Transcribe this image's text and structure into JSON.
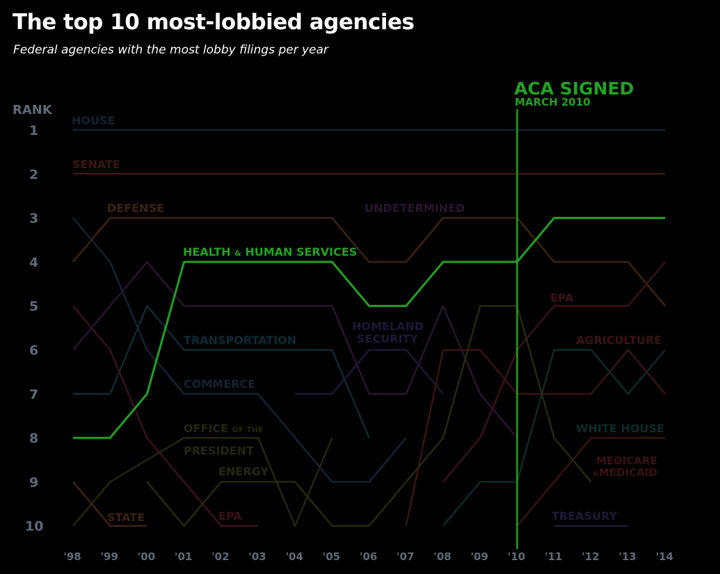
{
  "title": "The top 10 most-lobbied agencies",
  "subtitle": "Federal agencies with the most lobby filings per year",
  "chart_data": {
    "type": "line",
    "ylabel": "RANK",
    "x_tick_labels": [
      "'98",
      "'99",
      "'00",
      "'01",
      "'02",
      "'03",
      "'04",
      "'05",
      "'06",
      "'07",
      "'08",
      "'09",
      "'10",
      "'11",
      "'12",
      "'13",
      "'14"
    ],
    "y_tick_labels": [
      "1",
      "2",
      "3",
      "4",
      "5",
      "6",
      "7",
      "8",
      "9",
      "10"
    ],
    "ylim": [
      1,
      10
    ],
    "y_inverted": true,
    "annotation": {
      "title": "ACA SIGNED",
      "subtitle": "MARCH 2010",
      "x": "'10",
      "color": "#22a322"
    },
    "series": [
      {
        "name": "HOUSE",
        "color": "#142233",
        "values": [
          1,
          1,
          1,
          1,
          1,
          1,
          1,
          1,
          1,
          1,
          1,
          1,
          1,
          1,
          1,
          1,
          1
        ]
      },
      {
        "name": "SENATE",
        "color": "#3a1712",
        "values": [
          2,
          2,
          2,
          2,
          2,
          2,
          2,
          2,
          2,
          2,
          2,
          2,
          2,
          2,
          2,
          2,
          2
        ]
      },
      {
        "name": "DEFENSE",
        "color": "#3d2312",
        "values": [
          4,
          3,
          3,
          3,
          3,
          3,
          3,
          3,
          4,
          4,
          3,
          3,
          3,
          4,
          4,
          4,
          5
        ]
      },
      {
        "name": "HEALTH & HUMAN SERVICES",
        "color": "#22a322",
        "values": [
          8,
          8,
          7,
          4,
          4,
          4,
          4,
          4,
          5,
          5,
          4,
          4,
          4,
          3,
          3,
          3,
          3
        ]
      },
      {
        "name": "TRANSPORTATION",
        "color": "#0f2a33",
        "values": [
          7,
          7,
          5,
          6,
          6,
          6,
          6,
          6,
          8,
          null,
          null,
          null,
          null,
          null,
          null,
          null,
          null
        ]
      },
      {
        "name": "COMMERCE",
        "color": "#142333",
        "values": [
          3,
          4,
          6,
          7,
          7,
          7,
          8,
          9,
          9,
          8,
          null,
          null,
          null,
          null,
          null,
          null,
          null
        ]
      },
      {
        "name": "UNDETERMINED",
        "color": "#2a1530",
        "values": [
          6,
          5,
          4,
          5,
          5,
          5,
          5,
          5,
          7,
          7,
          5,
          7,
          8,
          null,
          null,
          null,
          null
        ]
      },
      {
        "name": "EPA",
        "color": "#3a1218",
        "values": [
          5,
          6,
          8,
          9,
          10,
          10,
          null,
          null,
          null,
          null,
          null,
          null,
          null,
          null,
          null,
          null,
          null
        ]
      },
      {
        "name": "EPA",
        "color": "#3a1218",
        "values": [
          null,
          null,
          null,
          null,
          null,
          null,
          null,
          null,
          null,
          null,
          9,
          8,
          6,
          5,
          5,
          5,
          4
        ]
      },
      {
        "name": "HOMELAND SECURITY",
        "color": "#1c1838",
        "values": [
          null,
          null,
          null,
          null,
          null,
          null,
          7,
          7,
          6,
          6,
          7,
          null,
          null,
          null,
          null,
          null,
          null
        ]
      },
      {
        "name": "AGRICULTURE",
        "color": "#3a1412",
        "values": [
          null,
          null,
          null,
          null,
          null,
          null,
          null,
          null,
          null,
          10,
          6,
          6,
          7,
          7,
          7,
          6,
          7
        ]
      },
      {
        "name": "WHITE HOUSE",
        "color": "#0f2a2a",
        "values": [
          null,
          null,
          null,
          null,
          null,
          null,
          null,
          null,
          null,
          null,
          10,
          9,
          9,
          6,
          6,
          7,
          6
        ]
      },
      {
        "name": "OFFICE OF THE PRESIDENT",
        "color": "#26260c",
        "values": [
          10,
          9,
          8.5,
          8,
          8,
          8,
          10,
          8,
          null,
          null,
          null,
          null,
          null,
          null,
          null,
          null,
          null
        ]
      },
      {
        "name": "ENERGY",
        "color": "#262a0c",
        "values": [
          null,
          null,
          9,
          10,
          9,
          9,
          9,
          10,
          10,
          9,
          8,
          5,
          5,
          8,
          9,
          null,
          null
        ]
      },
      {
        "name": "STATE",
        "color": "#3d2212",
        "values": [
          9,
          10,
          10,
          null,
          null,
          null,
          null,
          null,
          null,
          null,
          null,
          null,
          null,
          null,
          null,
          null,
          null
        ]
      },
      {
        "name": "MEDICARE & MEDICAID",
        "color": "#3a1212",
        "values": [
          null,
          null,
          null,
          null,
          null,
          null,
          null,
          null,
          null,
          null,
          null,
          null,
          10,
          9,
          8,
          8,
          8
        ]
      },
      {
        "name": "TREASURY",
        "color": "#201838",
        "values": [
          null,
          null,
          null,
          null,
          null,
          null,
          null,
          null,
          null,
          null,
          null,
          null,
          null,
          10,
          10,
          10,
          null
        ]
      }
    ],
    "labels": {
      "house": "HOUSE",
      "senate": "SENATE",
      "defense": "DEFENSE",
      "undetermined": "UNDETERMINED",
      "hhs_main": "HEALTH",
      "hhs_amp": "&",
      "hhs_rest": "HUMAN SERVICES",
      "transportation": "TRANSPORTATION",
      "homeland_1": "HOMELAND",
      "homeland_2": "SECURITY",
      "commerce": "COMMERCE",
      "office_main": "OFFICE",
      "office_small": "OF THE",
      "president": "PRESIDENT",
      "energy": "ENERGY",
      "state": "STATE",
      "epa_left": "EPA",
      "epa_right": "EPA",
      "agriculture": "AGRICULTURE",
      "white_house": "WHITE HOUSE",
      "medicare_1": "MEDICARE",
      "medicare_amp": "&",
      "medicare_2": "MEDICAID",
      "treasury": "TREASURY"
    }
  }
}
